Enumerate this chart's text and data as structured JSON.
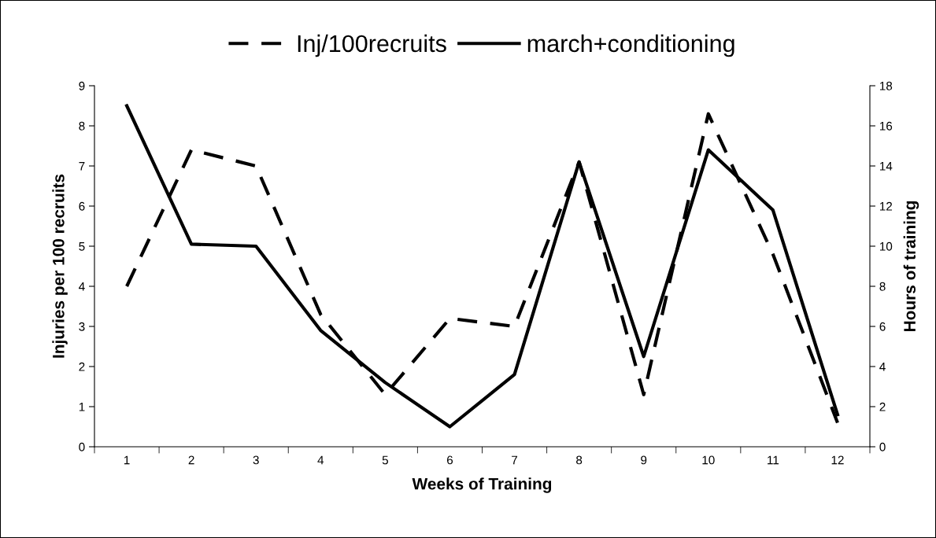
{
  "chart_data": {
    "type": "line",
    "xlabel": "Weeks of Training",
    "ylabel": "Injuries per 100 recruits",
    "y2label": "Hours of training",
    "categories": [
      "1",
      "2",
      "3",
      "4",
      "5",
      "6",
      "7",
      "8",
      "9",
      "10",
      "11",
      "12"
    ],
    "series": [
      {
        "name": "Inj/100recruits",
        "color": "#000000",
        "line_style": "dashed",
        "values": [
          4.0,
          7.4,
          7.0,
          3.3,
          1.3,
          3.2,
          3.0,
          7.1,
          1.3,
          8.3,
          4.8,
          0.6
        ]
      },
      {
        "name": "march+conditioning",
        "color": "#000000",
        "line_style": "solid",
        "axis": "y2",
        "values": [
          17.0,
          10.1,
          10.0,
          5.8,
          3.2,
          1.0,
          3.6,
          14.2,
          4.5,
          14.8,
          11.8,
          1.6
        ]
      }
    ],
    "ylim": [
      0,
      9
    ],
    "yticks": [
      0,
      1,
      2,
      3,
      4,
      5,
      6,
      7,
      8,
      9
    ],
    "y2lim": [
      0,
      18
    ],
    "y2ticks": [
      0,
      2,
      4,
      6,
      8,
      10,
      12,
      14,
      16,
      18
    ],
    "grid": false,
    "legend": "top",
    "marker": "none"
  }
}
